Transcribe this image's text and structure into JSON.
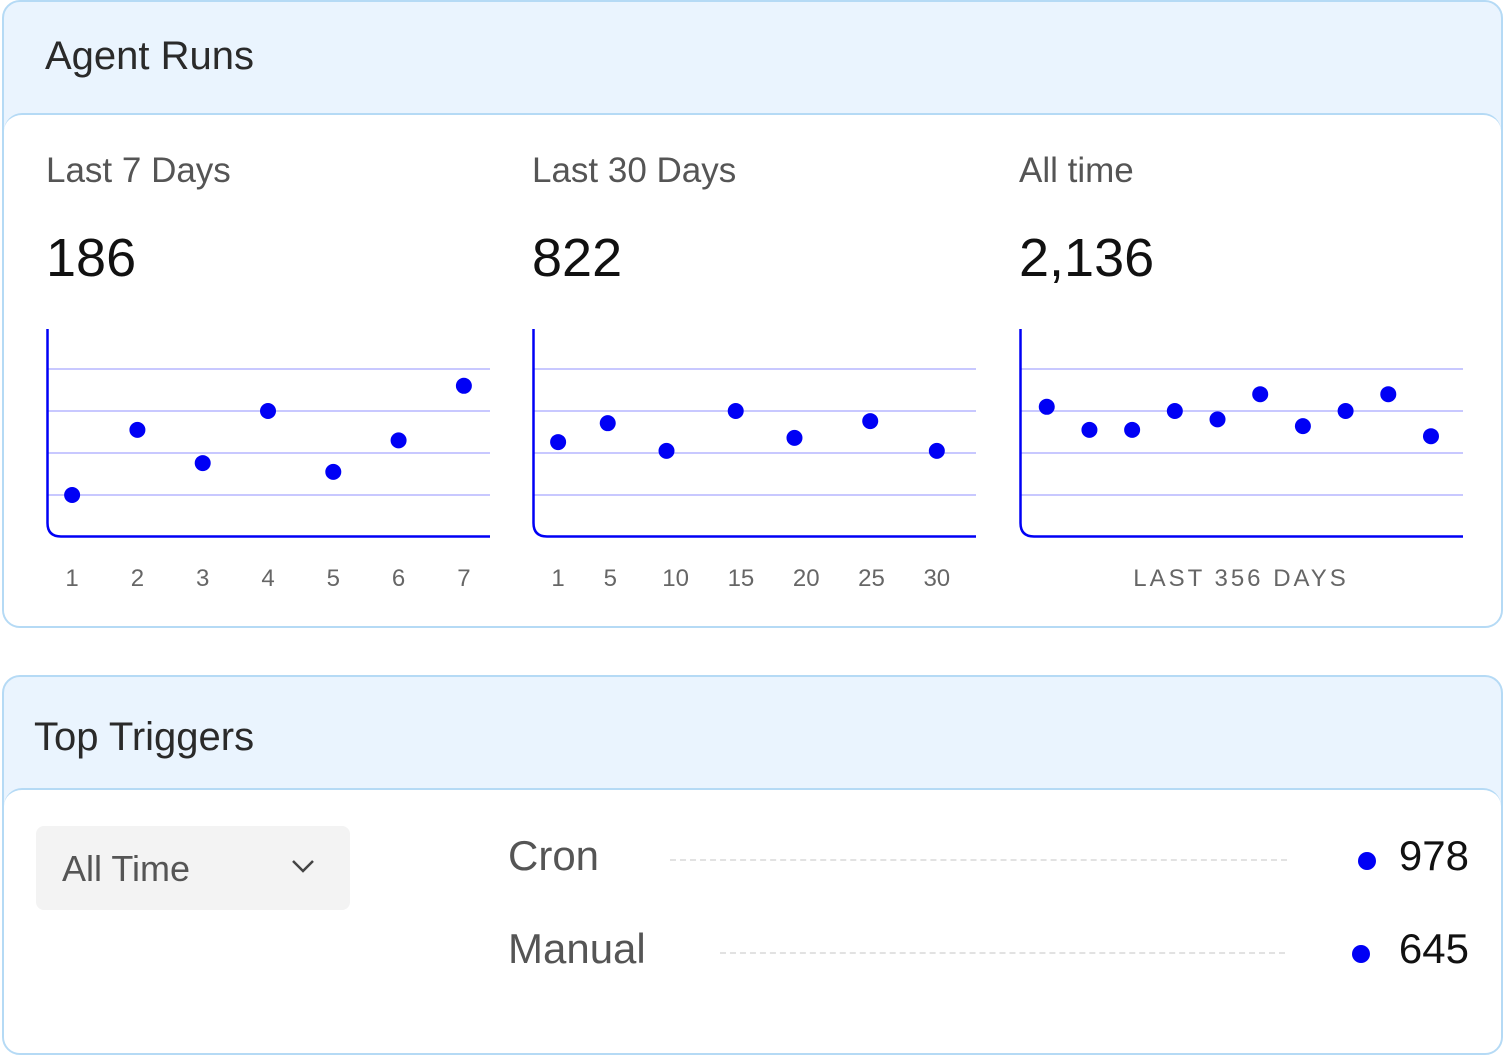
{
  "agent_runs": {
    "title": "Agent Runs",
    "stats": [
      {
        "label": "Last 7 Days",
        "value": "186"
      },
      {
        "label": "Last 30 Days",
        "value": "822"
      },
      {
        "label": "All time",
        "value": "2,136"
      }
    ]
  },
  "chart_data": [
    {
      "type": "scatter",
      "x_ticks": [
        "1",
        "2",
        "3",
        "4",
        "5",
        "6",
        "7"
      ],
      "x": [
        1,
        2,
        3,
        4,
        5,
        6,
        7
      ],
      "y": [
        1.0,
        2.55,
        1.76,
        3.0,
        1.55,
        2.3,
        3.6
      ],
      "xlim": [
        0.6,
        7.4
      ],
      "ylim": [
        0,
        4.5
      ],
      "grid": true,
      "color": "#0000F5"
    },
    {
      "type": "scatter",
      "x_ticks": [
        "1",
        "5",
        "10",
        "15",
        "20",
        "25",
        "30"
      ],
      "x": [
        1,
        4.8,
        9.3,
        14.6,
        19.1,
        24.9,
        30
      ],
      "y": [
        2.26,
        2.71,
        2.05,
        3.0,
        2.36,
        2.76,
        2.05
      ],
      "xlim": [
        -1,
        33
      ],
      "ylim": [
        0,
        4.5
      ],
      "grid": true,
      "color": "#0000F5"
    },
    {
      "type": "scatter",
      "xlabel": "LAST 356 DAYS",
      "x": [
        1,
        2,
        3,
        4,
        5,
        6,
        7,
        8,
        9,
        10
      ],
      "y": [
        3.1,
        2.55,
        2.55,
        3.0,
        2.8,
        3.4,
        2.64,
        3.0,
        3.4,
        2.4
      ],
      "xlim": [
        0.35,
        10.75
      ],
      "ylim": [
        0,
        4.5
      ],
      "grid": true,
      "color": "#0000F5"
    }
  ],
  "top_triggers": {
    "title": "Top Triggers",
    "period_select": {
      "value": "All Time",
      "icon": "chevron-down-icon"
    },
    "rows": [
      {
        "label": "Cron",
        "value": "978"
      },
      {
        "label": "Manual",
        "value": "645"
      }
    ]
  },
  "colors": {
    "accent": "#0000F5",
    "grid": "#C8C8FF",
    "header_bg": "#EAF4FE",
    "border": "#B5DAF5"
  }
}
